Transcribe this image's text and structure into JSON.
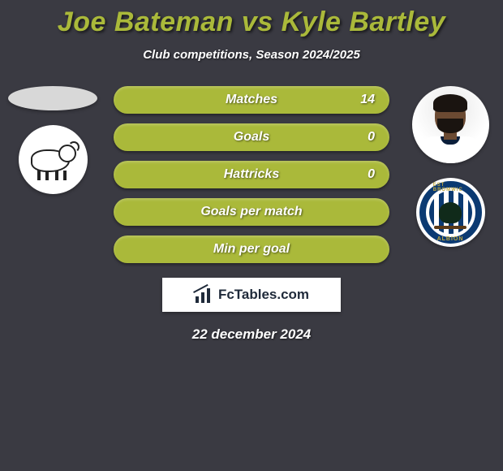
{
  "title": "Joe Bateman vs Kyle Bartley",
  "subtitle": "Club competitions, Season 2024/2025",
  "stats": [
    {
      "label": "Matches",
      "value": "14"
    },
    {
      "label": "Goals",
      "value": "0"
    },
    {
      "label": "Hattricks",
      "value": "0"
    },
    {
      "label": "Goals per match",
      "value": ""
    },
    {
      "label": "Min per goal",
      "value": ""
    }
  ],
  "left": {
    "club_name": "derby-county",
    "player_name": "joe-bateman"
  },
  "right": {
    "club_name": "west-bromwich-albion",
    "player_name": "kyle-bartley",
    "ring_top_text": "EST BROMWIC",
    "ring_bottom_text": "ALBION"
  },
  "brand": "FcTables.com",
  "date": "22 december 2024",
  "colors": {
    "background": "#3a3a42",
    "accent": "#aab93a",
    "text_light": "#ffffff",
    "wba_navy": "#0b3a72"
  }
}
